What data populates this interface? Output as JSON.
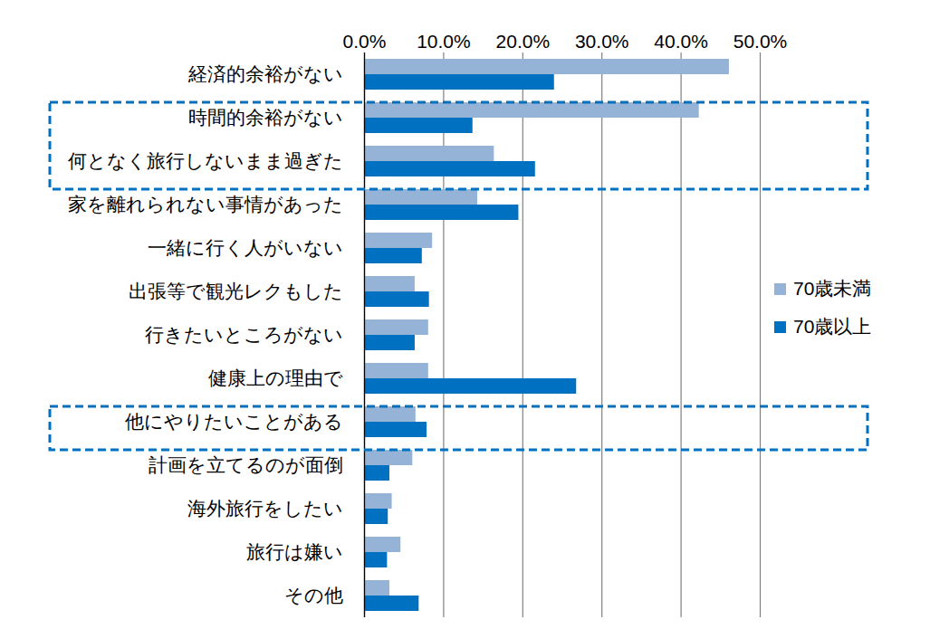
{
  "chart_data": {
    "type": "bar",
    "orientation": "horizontal",
    "categories": [
      "経済的余裕がない",
      "時間的余裕がない",
      "何となく旅行しないまま過ぎた",
      "家を離れられない事情があった",
      "一緒に行く人がいない",
      "出張等で観光レクもした",
      "行きたいところがない",
      "健康上の理由で",
      "他にやりたいことがある",
      "計画を立てるのが面倒",
      "海外旅行をしたい",
      "旅行は嫌い",
      "その他"
    ],
    "series": [
      {
        "name": "70歳未満",
        "color": "#95b3d7",
        "values": [
          46.1,
          42.3,
          16.4,
          14.3,
          8.6,
          6.4,
          8.1,
          8.1,
          6.5,
          6.1,
          3.5,
          4.6,
          3.2
        ]
      },
      {
        "name": "70歳以上",
        "color": "#0070c0",
        "values": [
          24.0,
          13.7,
          21.6,
          19.5,
          7.3,
          8.2,
          6.4,
          26.8,
          7.9,
          3.2,
          3.0,
          2.9,
          6.9
        ]
      }
    ],
    "xlim": [
      0,
      50
    ],
    "xticks": [
      {
        "value": 0,
        "label": "0.0%"
      },
      {
        "value": 10,
        "label": "10.0%"
      },
      {
        "value": 20,
        "label": "20.0%"
      },
      {
        "value": 30,
        "label": "30.0%"
      },
      {
        "value": 40,
        "label": "40.0%"
      },
      {
        "value": 50,
        "label": "50.0%"
      }
    ],
    "grid": true,
    "legend": "right"
  }
}
